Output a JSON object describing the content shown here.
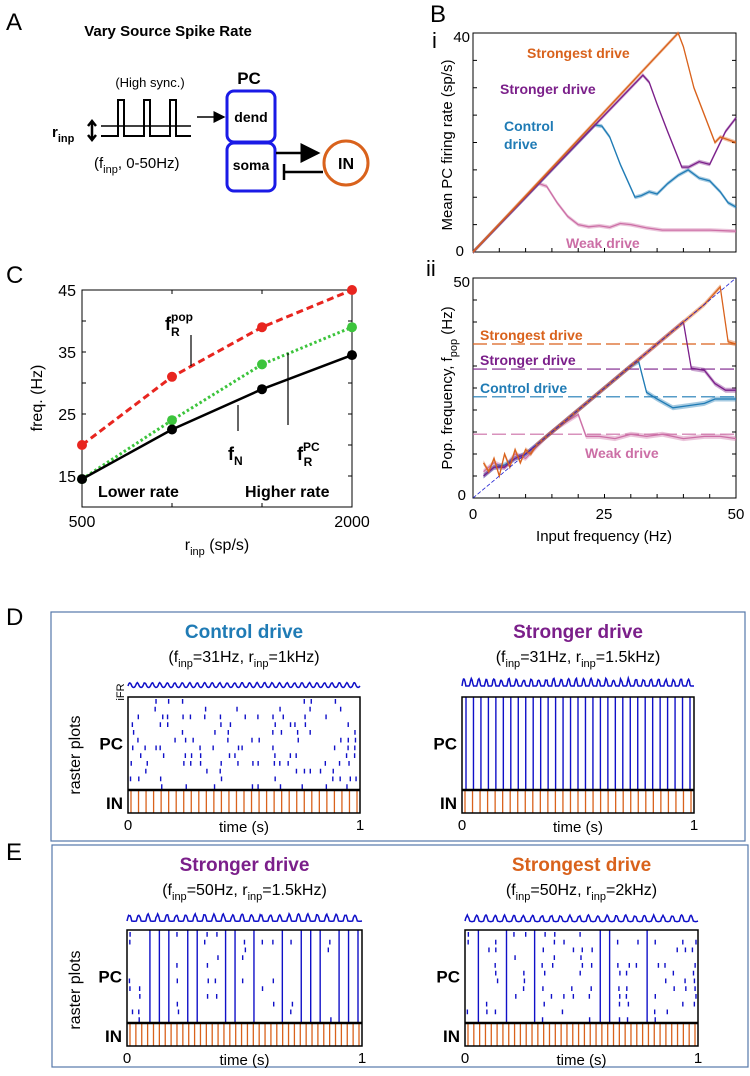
{
  "colors": {
    "strongest": "#d9621c",
    "stronger": "#7b1f8a",
    "control": "#1f7bb5",
    "weak": "#cc6fa6",
    "raster": "#1010c8",
    "in": "#d9621c",
    "pc_box": "#1a1ae6",
    "in_circle": "#d9621c",
    "c_red": "#e8251f",
    "c_green": "#3cc43c",
    "c_black": "#000000",
    "frame": "#5577aa"
  },
  "panel_labels": {
    "a": "A",
    "b": "B",
    "bi": "i",
    "bii": "ii",
    "c": "C",
    "d": "D",
    "e": "E"
  },
  "panelA": {
    "title": "Vary Source Spike Rate",
    "sync": "(High sync.)",
    "rinp_main": "r",
    "rinp_sub": "inp",
    "finp_pre": "(f",
    "finp_sub": "inp",
    "finp_post": ", 0-50Hz)",
    "pc": "PC",
    "dend": "dend",
    "soma": "soma",
    "in": "IN"
  },
  "chart_data": [
    {
      "id": "C",
      "type": "line",
      "xlabel_main": "r",
      "xlabel_sub": "inp",
      "xlabel_post": " (sp/s)",
      "ylabel": "freq. (Hz)",
      "xlim": [
        500,
        2000
      ],
      "ylim": [
        10,
        45
      ],
      "xticks": [
        500,
        1000,
        1500,
        2000
      ],
      "xticklabels": [
        "500",
        "",
        "",
        "2000"
      ],
      "yticks": [
        15,
        20,
        25,
        30,
        35,
        40,
        45
      ],
      "yticklabels": [
        "15",
        "",
        "25",
        "",
        "35",
        "",
        "45"
      ],
      "x": [
        500,
        1000,
        1500,
        2000
      ],
      "series": [
        {
          "name": "f_R^pop",
          "style": "dashed",
          "color": "#e8251f",
          "values": [
            20,
            31,
            39,
            45
          ]
        },
        {
          "name": "f_R^PC",
          "style": "dotted",
          "color": "#3cc43c",
          "values": [
            14.5,
            24,
            33,
            39
          ]
        },
        {
          "name": "f_N",
          "style": "solid",
          "color": "#000000",
          "values": [
            14.5,
            22.5,
            29,
            34.5
          ]
        }
      ],
      "annotations": {
        "frpop_main": "f",
        "frpop_sub": "R",
        "frpop_sup": "pop",
        "fn_main": "f",
        "fn_sub": "N",
        "frpc_main": "f",
        "frpc_sub": "R",
        "frpc_sup": "PC",
        "lower": "Lower rate",
        "higher": "Higher rate"
      }
    },
    {
      "id": "Bi",
      "type": "line",
      "ylabel": "Mean PC firing rate (sp/s)",
      "xlim": [
        0,
        50
      ],
      "ylim": [
        0,
        40
      ],
      "yticklabels": [
        "0",
        "40"
      ],
      "series": [
        {
          "name": "Weak drive",
          "color": "#cc6fa6",
          "x": [
            0,
            12.5,
            14,
            16,
            18,
            20,
            22,
            24,
            26,
            28,
            30,
            33,
            36,
            40,
            45,
            50
          ],
          "y": [
            0,
            12.5,
            12,
            9,
            6.5,
            5,
            4.6,
            4.8,
            4.5,
            5.2,
            5,
            4.4,
            4,
            4,
            4,
            3.8
          ]
        },
        {
          "name": "Control drive",
          "color": "#1f7bb5",
          "x": [
            0,
            23.2,
            24.5,
            26,
            28,
            30.8,
            32,
            33.5,
            35,
            37,
            39,
            40.9,
            43,
            45,
            47,
            48.5,
            50
          ],
          "y": [
            0,
            23.2,
            23,
            21,
            16,
            10,
            10.3,
            11,
            10.6,
            12.5,
            14,
            15,
            13.5,
            13,
            11,
            9,
            8.2
          ]
        },
        {
          "name": "Stronger drive",
          "color": "#7b1f8a",
          "x": [
            0,
            32.3,
            33.5,
            35,
            37,
            39.7,
            41,
            43,
            45,
            46.5,
            48,
            50
          ],
          "y": [
            0,
            32.3,
            31,
            27,
            22,
            15.5,
            15.5,
            16.5,
            16,
            19,
            22,
            24.5
          ]
        },
        {
          "name": "Strongest drive",
          "color": "#d9621c",
          "x": [
            0,
            39,
            40,
            42,
            44,
            46,
            47,
            48.5,
            50
          ],
          "y": [
            0,
            40,
            37.5,
            30,
            25,
            20,
            21,
            20.5,
            20
          ]
        }
      ],
      "labels": {
        "strongest": "Strongest drive",
        "stronger": "Stronger drive",
        "control1": "Control",
        "control2": "drive",
        "weak": "Weak drive"
      }
    },
    {
      "id": "Bii",
      "type": "line",
      "ylabel_main": "Pop. frequency, f",
      "ylabel_sub": "pop",
      "ylabel_post": " (Hz)",
      "xlabel": "Input frequency (Hz)",
      "xlim": [
        0,
        50
      ],
      "ylim": [
        0,
        50
      ],
      "xticklabels": [
        "0",
        "25",
        "50"
      ],
      "yticklabels": [
        "0",
        "50"
      ],
      "reference_lines": [
        {
          "name": "Strongest drive",
          "y": 35
        },
        {
          "name": "Stronger drive",
          "y": 29.3
        },
        {
          "name": "Control drive",
          "y": 23
        },
        {
          "name": "Weak drive",
          "y": 14.5
        }
      ],
      "series": [
        {
          "name": "Weak drive",
          "color": "#cc6fa6",
          "x": [
            2,
            4,
            6,
            8,
            10,
            12,
            14,
            16,
            18,
            20,
            21.5,
            24,
            27,
            30,
            33,
            36,
            40,
            44,
            47,
            50
          ],
          "y": [
            6,
            8,
            7,
            10,
            9,
            11.5,
            14,
            16,
            17.5,
            19,
            14,
            14,
            13.5,
            14.5,
            14,
            14.5,
            13.5,
            14,
            14,
            13.5
          ]
        },
        {
          "name": "Control drive",
          "color": "#1f7bb5",
          "x": [
            2,
            4,
            6,
            8,
            10,
            12,
            14,
            16,
            18,
            20,
            22,
            24,
            26,
            28,
            30,
            31.5,
            33,
            35,
            38,
            41,
            44,
            46,
            50
          ],
          "y": [
            5,
            7,
            7.5,
            9,
            10,
            12,
            14,
            16,
            18,
            20,
            22,
            24,
            26,
            28,
            30,
            31,
            24,
            22.5,
            20.5,
            21,
            21.5,
            22.5,
            22.5
          ]
        },
        {
          "name": "Stronger drive",
          "color": "#7b1f8a",
          "x": [
            2,
            4,
            6,
            8,
            10,
            12,
            14,
            16,
            18,
            20,
            24,
            28,
            32,
            36,
            40,
            41.5,
            44,
            46,
            48,
            50
          ],
          "y": [
            5,
            7,
            7,
            9,
            10,
            12,
            14,
            16,
            18,
            20,
            24,
            28,
            32,
            36,
            40,
            29.5,
            29,
            26,
            24.5,
            24.5
          ]
        },
        {
          "name": "Strongest drive",
          "color": "#d9621c",
          "x": [
            2,
            3,
            4,
            5,
            6,
            7,
            8,
            9,
            10,
            11,
            12,
            14,
            16,
            18,
            20,
            24,
            28,
            32,
            36,
            40,
            44,
            47,
            48.5,
            50
          ],
          "y": [
            8,
            6,
            9,
            5,
            10,
            7,
            11,
            8,
            11,
            10,
            12,
            14,
            16,
            18,
            20,
            24,
            28,
            32,
            36,
            40,
            44,
            48,
            35.5,
            35
          ]
        }
      ],
      "labels": {
        "strongest": "Strongest drive",
        "stronger": "Stronger drive",
        "control": "Control drive",
        "weak": "Weak drive"
      }
    },
    {
      "id": "D-left",
      "type": "raster",
      "title": "Control drive",
      "title_color": "#1f7bb5",
      "finp": "31Hz",
      "rinp": "1kHz",
      "cycles": 31,
      "sync": 0.0,
      "ifr_amp": 0.25,
      "xticklabels": [
        "0",
        "1"
      ],
      "xlabel": "time (s)"
    },
    {
      "id": "D-right",
      "type": "raster",
      "title": "Stronger drive",
      "title_color": "#7b1f8a",
      "finp": "31Hz",
      "rinp": "1.5kHz",
      "cycles": 31,
      "sync": 1.0,
      "ifr_amp": 1.0,
      "xticklabels": [
        "0",
        "1"
      ],
      "xlabel": "time (s)"
    },
    {
      "id": "E-left",
      "type": "raster",
      "title": "Stronger drive",
      "title_color": "#7b1f8a",
      "finp": "50Hz",
      "rinp": "1.5kHz",
      "cycles": 25,
      "sync": 0.75,
      "ifr_amp": 0.9,
      "xticklabels": [
        "0",
        "1"
      ],
      "xlabel": "time (s)"
    },
    {
      "id": "E-right",
      "type": "raster",
      "title": "Strongest drive",
      "title_color": "#d9621c",
      "finp": "50Hz",
      "rinp": "2kHz",
      "cycles": 25,
      "sync": 0.3,
      "ifr_amp": 0.7,
      "xticklabels": [
        "0",
        "1"
      ],
      "xlabel": "time (s)"
    }
  ],
  "raster_labels": {
    "ifr": "iFR",
    "raster_plots": "raster plots",
    "pc": "PC",
    "in": "IN",
    "f": "(f",
    "inp": "inp",
    "eq": "=",
    "r": ", r",
    "close": ")"
  }
}
